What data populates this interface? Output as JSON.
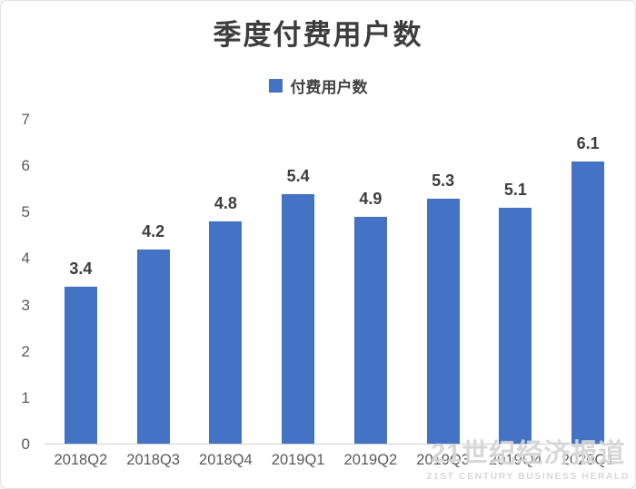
{
  "chart_data": {
    "type": "bar",
    "title": "季度付费用户数",
    "legend": [
      "付费用户数"
    ],
    "categories": [
      "2018Q2",
      "2018Q3",
      "2018Q4",
      "2019Q1",
      "2019Q2",
      "2019Q3",
      "2019Q4",
      "2020Q1"
    ],
    "values": [
      3.4,
      4.2,
      4.8,
      5.4,
      4.9,
      5.3,
      5.1,
      6.1
    ],
    "xlabel": "",
    "ylabel": "",
    "ylim": [
      0,
      7
    ],
    "yticks": [
      0,
      1,
      2,
      3,
      4,
      5,
      6,
      7
    ],
    "grid": false,
    "legend_position": "top-center",
    "bar_color": "#4472C4",
    "axis_line_color": "#cfcfcf"
  },
  "watermark": {
    "line1": "21世纪经济报道",
    "line2": "21ST CENTURY BUSINESS HERALD"
  }
}
